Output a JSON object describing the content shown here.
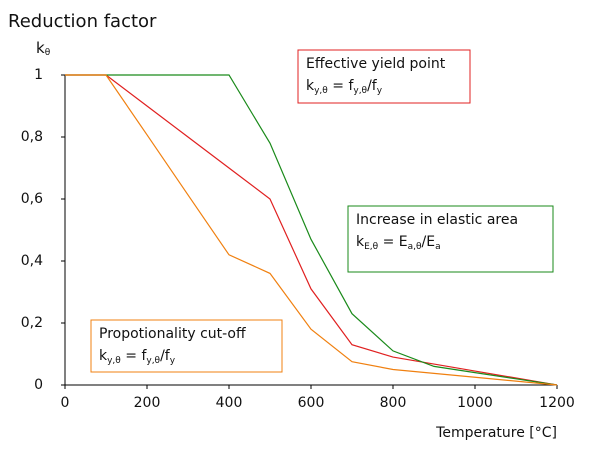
{
  "chart_data": {
    "type": "line",
    "title": "Reduction factor",
    "ylabel": "k",
    "ylabel_sub": "θ",
    "xlabel": "Temperature [°C]",
    "x": [
      0,
      100,
      200,
      300,
      400,
      500,
      600,
      700,
      800,
      900,
      1000,
      1100,
      1200
    ],
    "xlim": [
      0,
      1200
    ],
    "xticks": [
      0,
      200,
      400,
      600,
      800,
      1000,
      1200
    ],
    "ylim": [
      0,
      1
    ],
    "yticks": [
      0,
      {
        "value": 0.2,
        "label": "0,2"
      },
      {
        "value": 0.4,
        "label": "0,4"
      },
      {
        "value": 0.6,
        "label": "0,6"
      },
      {
        "value": 0.8,
        "label": "0,8"
      },
      1
    ],
    "series": [
      {
        "name": "Effective yield point",
        "color": "#e02020",
        "formula": [
          {
            "t": "k"
          },
          {
            "t": "y,θ",
            "sub": true
          },
          {
            "t": " = f"
          },
          {
            "t": "y,θ",
            "sub": true
          },
          {
            "t": "/f"
          },
          {
            "t": "y",
            "sub": true
          }
        ],
        "values": [
          1,
          1,
          0.9,
          0.8,
          0.7,
          0.6,
          0.31,
          0.13,
          0.09,
          0.0675,
          0.045,
          0.0225,
          0
        ]
      },
      {
        "name": "Increase in elastic area",
        "color": "#1a8a1a",
        "formula": [
          {
            "t": "k"
          },
          {
            "t": "E,θ",
            "sub": true
          },
          {
            "t": " = E"
          },
          {
            "t": "a,θ",
            "sub": true
          },
          {
            "t": "/E"
          },
          {
            "t": "a",
            "sub": true
          }
        ],
        "values": [
          1,
          1,
          1,
          1,
          1,
          0.78,
          0.47,
          0.23,
          0.11,
          0.06,
          0.04,
          0.02,
          0
        ]
      },
      {
        "name": "Propotionality cut-off",
        "color": "#f08010",
        "formula": [
          {
            "t": "k"
          },
          {
            "t": "y,θ",
            "sub": true
          },
          {
            "t": " = f"
          },
          {
            "t": "y,θ",
            "sub": true
          },
          {
            "t": "/f"
          },
          {
            "t": "y",
            "sub": true
          }
        ],
        "values": [
          1,
          1,
          0.807,
          0.613,
          0.42,
          0.36,
          0.18,
          0.075,
          0.05,
          0.0375,
          0.025,
          0.0125,
          0
        ]
      }
    ]
  }
}
